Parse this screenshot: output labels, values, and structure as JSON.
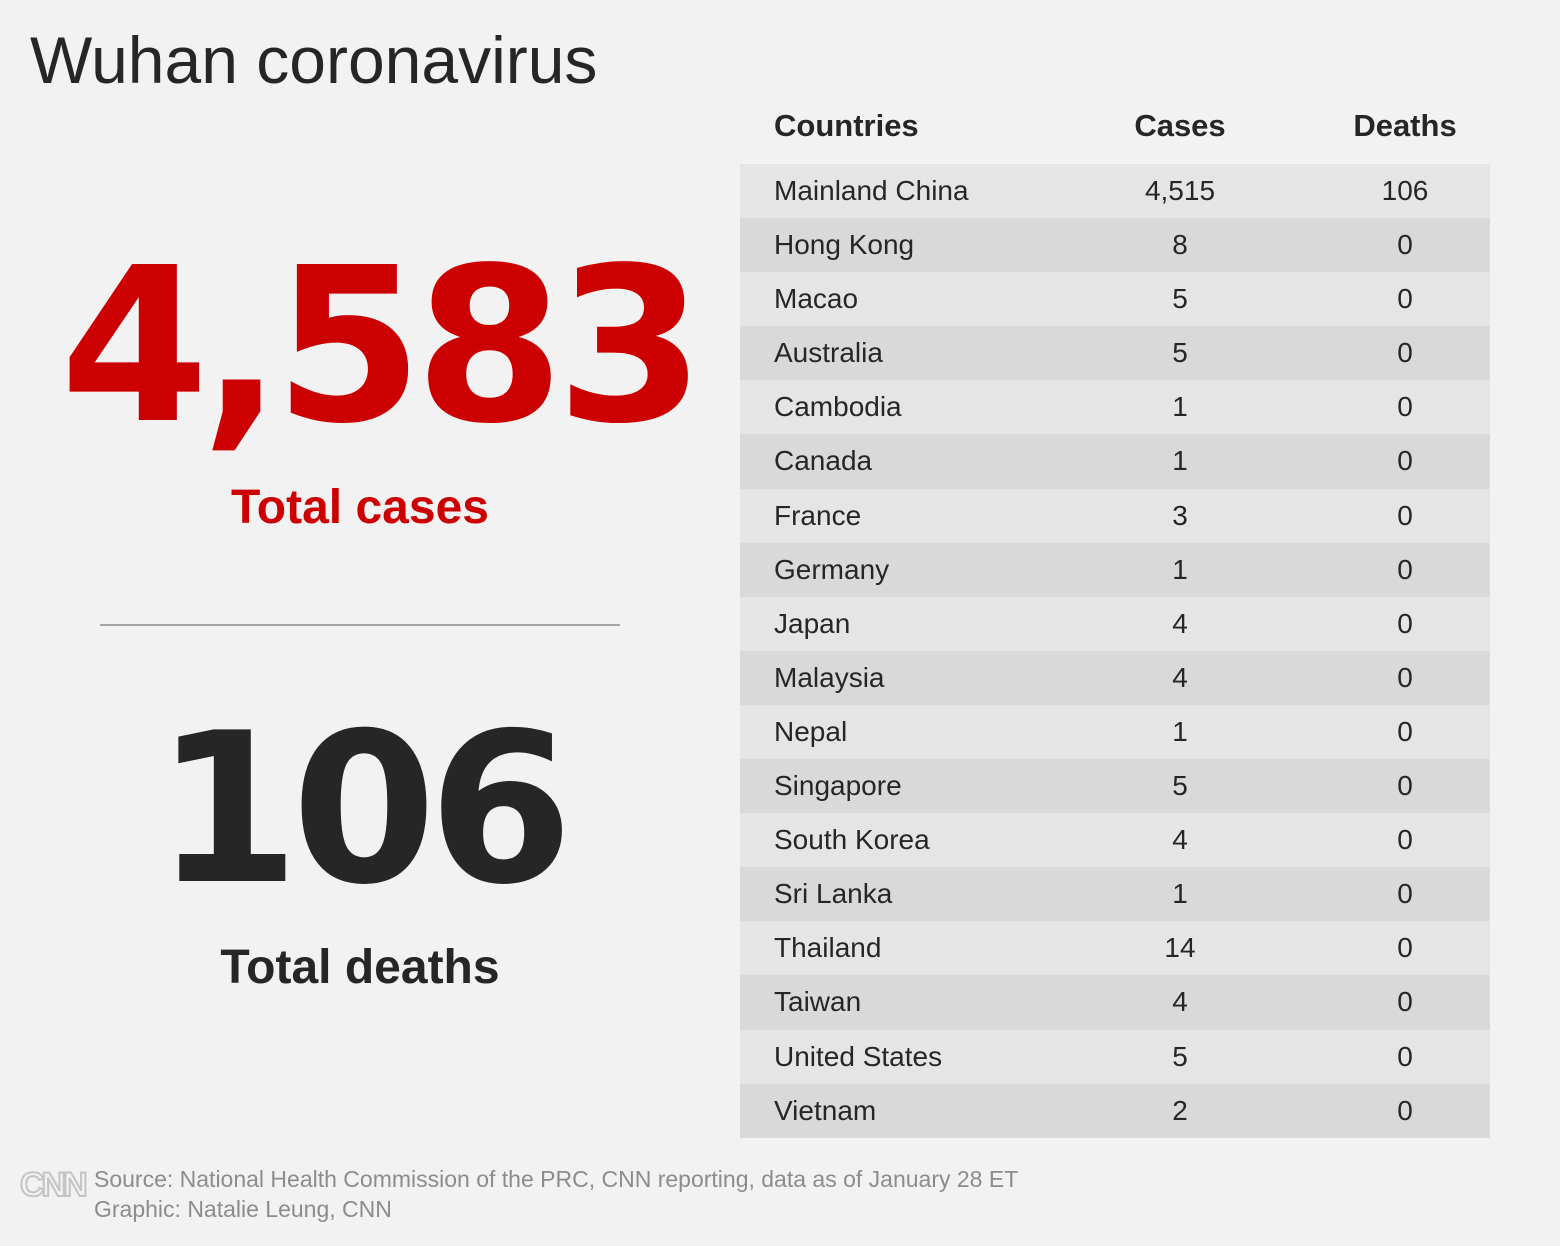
{
  "title": "Wuhan coronavirus",
  "summary": {
    "total_cases": "4,583",
    "total_cases_label": "Total cases",
    "total_deaths": "106",
    "total_deaths_label": "Total deaths"
  },
  "colors": {
    "accent_red": "#cc0000",
    "text_dark": "#262626",
    "background": "#f2f2f2",
    "row_light": "#e5e5e5",
    "row_dark": "#d9d9d9"
  },
  "chart_data": {
    "type": "table",
    "columns": [
      "Countries",
      "Cases",
      "Deaths"
    ],
    "rows": [
      {
        "country": "Mainland China",
        "cases": "4,515",
        "deaths": "106"
      },
      {
        "country": "Hong Kong",
        "cases": "8",
        "deaths": "0"
      },
      {
        "country": "Macao",
        "cases": "5",
        "deaths": "0"
      },
      {
        "country": "Australia",
        "cases": "5",
        "deaths": "0"
      },
      {
        "country": "Cambodia",
        "cases": "1",
        "deaths": "0"
      },
      {
        "country": "Canada",
        "cases": "1",
        "deaths": "0"
      },
      {
        "country": "France",
        "cases": "3",
        "deaths": "0"
      },
      {
        "country": "Germany",
        "cases": "1",
        "deaths": "0"
      },
      {
        "country": "Japan",
        "cases": "4",
        "deaths": "0"
      },
      {
        "country": "Malaysia",
        "cases": "4",
        "deaths": "0"
      },
      {
        "country": "Nepal",
        "cases": "1",
        "deaths": "0"
      },
      {
        "country": "Singapore",
        "cases": "5",
        "deaths": "0"
      },
      {
        "country": "South Korea",
        "cases": "4",
        "deaths": "0"
      },
      {
        "country": "Sri Lanka",
        "cases": "1",
        "deaths": "0"
      },
      {
        "country": "Thailand",
        "cases": "14",
        "deaths": "0"
      },
      {
        "country": "Taiwan",
        "cases": "4",
        "deaths": "0"
      },
      {
        "country": "United States",
        "cases": "5",
        "deaths": "0"
      },
      {
        "country": "Vietnam",
        "cases": "2",
        "deaths": "0"
      }
    ]
  },
  "footer": {
    "logo": "CNN",
    "source": "Source: National Health Commission of the PRC, CNN reporting, data as of January 28 ET",
    "credit": "Graphic: Natalie Leung, CNN"
  }
}
